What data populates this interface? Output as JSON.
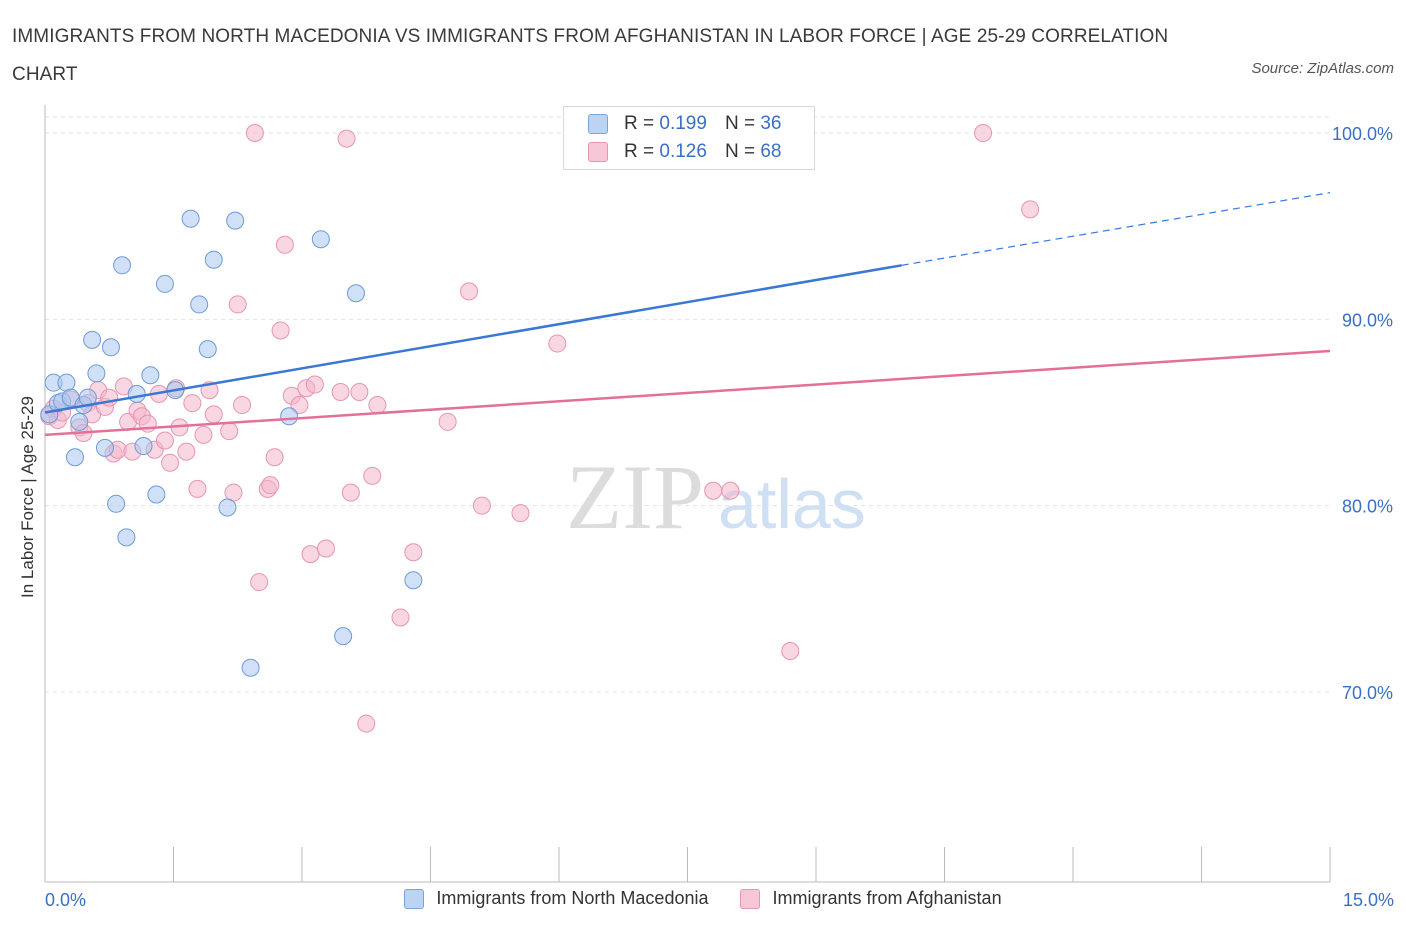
{
  "title": "IMMIGRANTS FROM NORTH MACEDONIA VS IMMIGRANTS FROM AFGHANISTAN IN LABOR FORCE | AGE 25-29 CORRELATION CHART",
  "source": "Source: ZipAtlas.com",
  "watermark": {
    "zip": "ZIP",
    "atlas": "atlas"
  },
  "colors": {
    "blue": "#3a78d4",
    "blue_fill": "#a9c6ef",
    "pink": "#e4709a",
    "pink_fill": "#f4b6cb",
    "tick_text": "#3a6fc6"
  },
  "legend_top": [
    {
      "r_label": "R =",
      "r": "0.199",
      "n_label": "N =",
      "n": "36"
    },
    {
      "r_label": "R =",
      "r": "0.126",
      "n_label": "N =",
      "n": "68"
    }
  ],
  "chart_data": {
    "type": "scatter",
    "title": "IMMIGRANTS FROM NORTH MACEDONIA VS IMMIGRANTS FROM AFGHANISTAN IN LABOR FORCE | AGE 25-29 CORRELATION CHART",
    "xlabel": "",
    "ylabel": "In Labor Force | Age 25-29",
    "xlim": [
      0,
      15
    ],
    "ylim": [
      60,
      102
    ],
    "x_tick_labels": [
      "0.0%",
      "15.0%"
    ],
    "y_ticks": [
      70,
      80,
      90,
      100
    ],
    "y_tick_labels": [
      "70.0%",
      "80.0%",
      "90.0%",
      "100.0%"
    ],
    "grid": true,
    "legend_position": "bottom",
    "series": [
      {
        "name": "Immigrants from North Macedonia",
        "color": "#3a78d4",
        "trend": {
          "x0": 0,
          "y0": 85.0,
          "x1": 10.0,
          "y1": 92.9,
          "dashed_to_x": 15.0,
          "dashed_to_y": 96.8
        },
        "points": [
          [
            0.05,
            84.9
          ],
          [
            0.1,
            86.6
          ],
          [
            0.15,
            85.5
          ],
          [
            0.2,
            85.6
          ],
          [
            0.25,
            86.6
          ],
          [
            0.3,
            85.8
          ],
          [
            0.35,
            82.6
          ],
          [
            0.4,
            84.5
          ],
          [
            0.45,
            85.4
          ],
          [
            0.5,
            85.8
          ],
          [
            0.55,
            88.9
          ],
          [
            0.6,
            87.1
          ],
          [
            0.7,
            83.1
          ],
          [
            0.77,
            88.5
          ],
          [
            0.83,
            80.1
          ],
          [
            0.9,
            92.9
          ],
          [
            0.95,
            78.3
          ],
          [
            1.07,
            86.0
          ],
          [
            1.15,
            83.2
          ],
          [
            1.23,
            87.0
          ],
          [
            1.3,
            80.6
          ],
          [
            1.4,
            91.9
          ],
          [
            1.52,
            86.2
          ],
          [
            1.7,
            95.4
          ],
          [
            1.8,
            90.8
          ],
          [
            1.9,
            88.4
          ],
          [
            1.97,
            93.2
          ],
          [
            2.13,
            79.9
          ],
          [
            2.22,
            95.3
          ],
          [
            2.4,
            71.3
          ],
          [
            2.85,
            84.8
          ],
          [
            3.22,
            94.3
          ],
          [
            3.48,
            73.0
          ],
          [
            3.63,
            91.4
          ],
          [
            4.3,
            76.0
          ],
          [
            8.0,
            100.0
          ]
        ]
      },
      {
        "name": "Immigrants from Afghanistan",
        "color": "#e4709a",
        "trend": {
          "x0": 0,
          "y0": 83.8,
          "x1": 15.0,
          "y1": 88.3
        },
        "points": [
          [
            0.05,
            84.8
          ],
          [
            0.1,
            85.2
          ],
          [
            0.15,
            84.6
          ],
          [
            0.2,
            85.0
          ],
          [
            0.3,
            85.7
          ],
          [
            0.4,
            84.2
          ],
          [
            0.45,
            83.9
          ],
          [
            0.5,
            85.5
          ],
          [
            0.55,
            84.9
          ],
          [
            0.62,
            86.2
          ],
          [
            0.7,
            85.3
          ],
          [
            0.75,
            85.8
          ],
          [
            0.8,
            82.8
          ],
          [
            0.85,
            83.0
          ],
          [
            0.92,
            86.4
          ],
          [
            0.97,
            84.5
          ],
          [
            1.02,
            82.9
          ],
          [
            1.08,
            85.1
          ],
          [
            1.13,
            84.8
          ],
          [
            1.2,
            84.4
          ],
          [
            1.28,
            83.0
          ],
          [
            1.33,
            86.0
          ],
          [
            1.4,
            83.5
          ],
          [
            1.46,
            82.3
          ],
          [
            1.53,
            86.3
          ],
          [
            1.57,
            84.2
          ],
          [
            1.65,
            82.9
          ],
          [
            1.72,
            85.5
          ],
          [
            1.78,
            80.9
          ],
          [
            1.85,
            83.8
          ],
          [
            1.92,
            86.2
          ],
          [
            1.97,
            84.9
          ],
          [
            2.15,
            84.0
          ],
          [
            2.2,
            80.7
          ],
          [
            2.25,
            90.8
          ],
          [
            2.3,
            85.4
          ],
          [
            2.45,
            100.0
          ],
          [
            2.5,
            75.9
          ],
          [
            2.6,
            80.9
          ],
          [
            2.63,
            81.1
          ],
          [
            2.68,
            82.6
          ],
          [
            2.75,
            89.4
          ],
          [
            2.8,
            94.0
          ],
          [
            2.88,
            85.9
          ],
          [
            2.97,
            85.4
          ],
          [
            3.05,
            86.3
          ],
          [
            3.1,
            77.4
          ],
          [
            3.15,
            86.5
          ],
          [
            3.28,
            77.7
          ],
          [
            3.45,
            86.1
          ],
          [
            3.52,
            99.7
          ],
          [
            3.57,
            80.7
          ],
          [
            3.67,
            86.1
          ],
          [
            3.75,
            68.3
          ],
          [
            3.82,
            81.6
          ],
          [
            3.88,
            85.4
          ],
          [
            4.15,
            74.0
          ],
          [
            4.3,
            77.5
          ],
          [
            4.7,
            84.5
          ],
          [
            4.95,
            91.5
          ],
          [
            5.1,
            80.0
          ],
          [
            5.55,
            79.6
          ],
          [
            5.98,
            88.7
          ],
          [
            7.8,
            80.8
          ],
          [
            8.0,
            80.8
          ],
          [
            8.7,
            72.2
          ],
          [
            10.95,
            100.0
          ],
          [
            11.5,
            95.9
          ]
        ]
      }
    ]
  }
}
